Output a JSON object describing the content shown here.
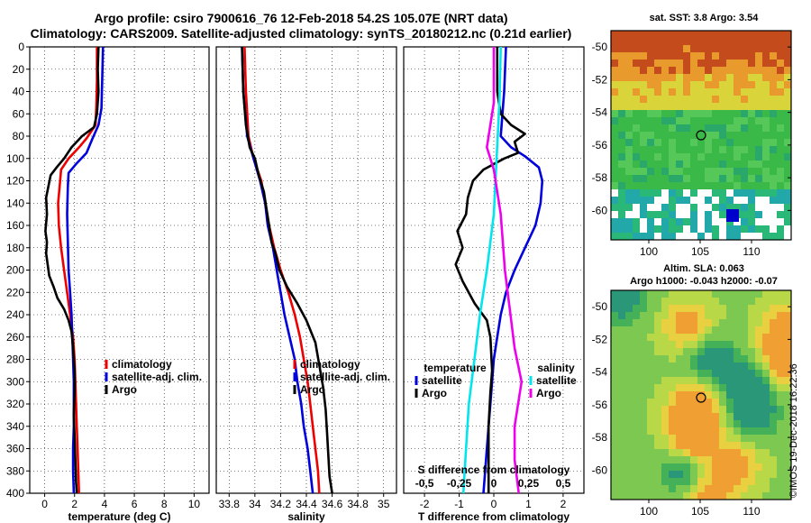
{
  "title_line1": "Argo profile: csiro 7900616_76 12-Feb-2018 54.2S 105.07E (NRT data)",
  "title_line2": "Climatology: CARS2009. Satellite-adjusted climatology: synTS_20180212.nc (0.21d earlier)",
  "colors": {
    "climatology": "#ee0000",
    "satellite": "#0000dd",
    "argo": "#000000",
    "sal_satellite": "#00e5ee",
    "sal_argo": "#ee00ee"
  },
  "chart_data": [
    {
      "type": "line",
      "name": "temperature",
      "xlabel": "temperature (deg C)",
      "ylabel": "",
      "xlim": [
        -1,
        11
      ],
      "ylim": [
        400,
        0
      ],
      "xticks": [
        "0",
        "2",
        "4",
        "6",
        "8",
        "10"
      ],
      "yticks": [
        "0",
        "20",
        "40",
        "60",
        "80",
        "100",
        "120",
        "140",
        "160",
        "180",
        "200",
        "220",
        "240",
        "260",
        "280",
        "300",
        "320",
        "340",
        "360",
        "380",
        "400"
      ],
      "legend": [
        "climatology",
        "satellite-adj. clim.",
        "Argo"
      ],
      "series": [
        {
          "name": "climatology",
          "points": [
            [
              3.5,
              0
            ],
            [
              3.5,
              30
            ],
            [
              3.45,
              55
            ],
            [
              3.4,
              70
            ],
            [
              2.8,
              82
            ],
            [
              2.3,
              90
            ],
            [
              1.6,
              100
            ],
            [
              1.1,
              110
            ],
            [
              1.0,
              125
            ],
            [
              0.9,
              140
            ],
            [
              0.95,
              160
            ],
            [
              1.1,
              180
            ],
            [
              1.3,
              200
            ],
            [
              1.5,
              220
            ],
            [
              1.7,
              240
            ],
            [
              1.9,
              260
            ],
            [
              2.0,
              280
            ],
            [
              2.05,
              300
            ],
            [
              2.1,
              320
            ],
            [
              2.15,
              340
            ],
            [
              2.2,
              360
            ],
            [
              2.25,
              380
            ],
            [
              2.3,
              400
            ]
          ]
        },
        {
          "name": "satellite",
          "points": [
            [
              3.9,
              0
            ],
            [
              3.85,
              30
            ],
            [
              3.8,
              55
            ],
            [
              3.6,
              70
            ],
            [
              3.2,
              82
            ],
            [
              2.8,
              95
            ],
            [
              2.1,
              105
            ],
            [
              1.6,
              113
            ],
            [
              1.55,
              125
            ],
            [
              1.5,
              150
            ],
            [
              1.55,
              175
            ],
            [
              1.6,
              200
            ],
            [
              1.7,
              220
            ],
            [
              1.8,
              240
            ],
            [
              1.85,
              260
            ],
            [
              1.9,
              280
            ],
            [
              1.95,
              300
            ],
            [
              1.95,
              320
            ],
            [
              1.95,
              340
            ],
            [
              1.9,
              360
            ],
            [
              1.9,
              380
            ],
            [
              1.95,
              400
            ]
          ]
        },
        {
          "name": "argo",
          "points": [
            [
              3.6,
              0
            ],
            [
              3.55,
              20
            ],
            [
              3.6,
              40
            ],
            [
              3.5,
              60
            ],
            [
              3.3,
              72
            ],
            [
              2.5,
              80
            ],
            [
              1.8,
              90
            ],
            [
              1.3,
              100
            ],
            [
              0.8,
              108
            ],
            [
              0.4,
              115
            ],
            [
              0.25,
              125
            ],
            [
              0.1,
              135
            ],
            [
              0.15,
              150
            ],
            [
              0.05,
              165
            ],
            [
              0.15,
              175
            ],
            [
              0.1,
              185
            ],
            [
              0.2,
              195
            ],
            [
              0.3,
              205
            ],
            [
              0.6,
              215
            ],
            [
              0.85,
              225
            ],
            [
              1.3,
              235
            ],
            [
              1.6,
              245
            ],
            [
              1.8,
              255
            ],
            [
              1.9,
              270
            ],
            [
              2.0,
              290
            ],
            [
              2.0,
              310
            ],
            [
              1.95,
              330
            ],
            [
              2.0,
              350
            ],
            [
              2.05,
              370
            ],
            [
              2.1,
              390
            ],
            [
              2.15,
              400
            ]
          ]
        }
      ]
    },
    {
      "type": "line",
      "name": "salinity",
      "xlabel": "salinity",
      "xlim": [
        33.7,
        35.1
      ],
      "ylim": [
        400,
        0
      ],
      "xticks": [
        "33.8",
        "34",
        "34.2",
        "34.4",
        "34.6",
        "34.8",
        "35"
      ],
      "legend": [
        "climatology",
        "satellite-adj. clim.",
        "Argo"
      ],
      "series": [
        {
          "name": "climatology",
          "points": [
            [
              33.92,
              0
            ],
            [
              33.93,
              40
            ],
            [
              33.95,
              80
            ],
            [
              33.99,
              100
            ],
            [
              34.05,
              120
            ],
            [
              34.08,
              140
            ],
            [
              34.11,
              160
            ],
            [
              34.15,
              180
            ],
            [
              34.2,
              200
            ],
            [
              34.26,
              220
            ],
            [
              34.31,
              240
            ],
            [
              34.35,
              260
            ],
            [
              34.38,
              280
            ],
            [
              34.41,
              300
            ],
            [
              34.43,
              320
            ],
            [
              34.45,
              340
            ],
            [
              34.47,
              360
            ],
            [
              34.49,
              380
            ],
            [
              34.5,
              400
            ]
          ]
        },
        {
          "name": "satellite",
          "points": [
            [
              33.9,
              0
            ],
            [
              33.91,
              40
            ],
            [
              33.94,
              80
            ],
            [
              33.99,
              100
            ],
            [
              34.04,
              120
            ],
            [
              34.08,
              140
            ],
            [
              34.1,
              160
            ],
            [
              34.14,
              180
            ],
            [
              34.17,
              200
            ],
            [
              34.2,
              220
            ],
            [
              34.23,
              240
            ],
            [
              34.27,
              260
            ],
            [
              34.31,
              280
            ],
            [
              34.33,
              300
            ],
            [
              34.36,
              320
            ],
            [
              34.38,
              340
            ],
            [
              34.41,
              360
            ],
            [
              34.43,
              380
            ],
            [
              34.45,
              400
            ]
          ]
        },
        {
          "name": "argo",
          "points": [
            [
              33.9,
              0
            ],
            [
              33.91,
              40
            ],
            [
              33.93,
              70
            ],
            [
              33.96,
              90
            ],
            [
              34.0,
              100
            ],
            [
              34.03,
              115
            ],
            [
              34.07,
              130
            ],
            [
              34.09,
              145
            ],
            [
              34.11,
              160
            ],
            [
              34.13,
              175
            ],
            [
              34.16,
              185
            ],
            [
              34.19,
              200
            ],
            [
              34.25,
              215
            ],
            [
              34.33,
              230
            ],
            [
              34.4,
              245
            ],
            [
              34.47,
              265
            ],
            [
              34.5,
              285
            ],
            [
              34.53,
              305
            ],
            [
              34.55,
              325
            ],
            [
              34.56,
              345
            ],
            [
              34.57,
              365
            ],
            [
              34.58,
              385
            ],
            [
              34.6,
              400
            ]
          ]
        }
      ]
    },
    {
      "type": "line",
      "name": "difference",
      "xlabel": "T difference from climatology",
      "xlabel_top": "S difference from climatology",
      "xlim": [
        -2.6,
        2.6
      ],
      "ylim": [
        400,
        0
      ],
      "xticks": [
        "-2",
        "-1",
        "0",
        "1",
        "2"
      ],
      "xticks_top": [
        "-0.5",
        "-0.25",
        "0",
        "0.25",
        "0.5"
      ],
      "legend_left_title": "temperature",
      "legend_left": [
        "satellite",
        "Argo"
      ],
      "legend_right_title": "salinity",
      "legend_right": [
        "satellite",
        "Argo"
      ],
      "series": [
        {
          "name": "T satellite",
          "points": [
            [
              0.35,
              0
            ],
            [
              0.3,
              40
            ],
            [
              0.2,
              80
            ],
            [
              0.5,
              90
            ],
            [
              0.9,
              98
            ],
            [
              1.3,
              108
            ],
            [
              1.4,
              120
            ],
            [
              1.35,
              140
            ],
            [
              1.2,
              160
            ],
            [
              0.9,
              180
            ],
            [
              0.6,
              200
            ],
            [
              0.35,
              220
            ],
            [
              0.2,
              240
            ],
            [
              0.1,
              260
            ],
            [
              0.0,
              280
            ],
            [
              -0.05,
              300
            ],
            [
              -0.1,
              320
            ],
            [
              -0.15,
              340
            ],
            [
              -0.2,
              360
            ],
            [
              -0.25,
              380
            ],
            [
              -0.3,
              400
            ]
          ]
        },
        {
          "name": "T argo",
          "points": [
            [
              0.1,
              0
            ],
            [
              0.1,
              40
            ],
            [
              0.2,
              60
            ],
            [
              0.5,
              70
            ],
            [
              0.9,
              78
            ],
            [
              0.6,
              85
            ],
            [
              0.7,
              95
            ],
            [
              0.3,
              100
            ],
            [
              -0.3,
              110
            ],
            [
              -0.6,
              120
            ],
            [
              -0.75,
              135
            ],
            [
              -0.8,
              150
            ],
            [
              -1.05,
              165
            ],
            [
              -0.9,
              180
            ],
            [
              -1.1,
              195
            ],
            [
              -0.9,
              210
            ],
            [
              -0.55,
              230
            ],
            [
              -0.2,
              245
            ],
            [
              -0.1,
              260
            ],
            [
              -0.05,
              290
            ],
            [
              -0.1,
              310
            ],
            [
              -0.15,
              340
            ],
            [
              -0.15,
              370
            ],
            [
              -0.15,
              400
            ]
          ]
        },
        {
          "name": "S satellite",
          "points": [
            [
              0.05,
              0
            ],
            [
              0.04,
              50
            ],
            [
              0.02,
              100
            ],
            [
              0.0,
              150
            ],
            [
              -0.05,
              200
            ],
            [
              -0.1,
              240
            ],
            [
              -0.14,
              280
            ],
            [
              -0.18,
              320
            ],
            [
              -0.2,
              360
            ],
            [
              -0.22,
              400
            ]
          ]
        },
        {
          "name": "S argo",
          "points": [
            [
              0.0,
              0
            ],
            [
              0.0,
              50
            ],
            [
              -0.05,
              90
            ],
            [
              0.0,
              110
            ],
            [
              0.05,
              150
            ],
            [
              0.08,
              200
            ],
            [
              0.12,
              240
            ],
            [
              0.15,
              270
            ],
            [
              0.2,
              300
            ],
            [
              0.15,
              340
            ],
            [
              0.15,
              370
            ],
            [
              0.18,
              400
            ]
          ]
        }
      ]
    }
  ],
  "map_sst": {
    "title": "sat. SST: 3.8 Argo: 3.54",
    "yticks": [
      "-50",
      "-52",
      "-54",
      "-56",
      "-58",
      "-60"
    ],
    "xticks": [
      "100",
      "105",
      "110"
    ]
  },
  "map_sla": {
    "title1": "Altim. SLA: 0.063",
    "title2": "Argo h1000: -0.043 h2000: -0.07",
    "yticks": [
      "-50",
      "-52",
      "-54",
      "-56",
      "-58",
      "-60"
    ],
    "xticks": [
      "100",
      "105",
      "110"
    ]
  },
  "credit": "©IMOS 19-Dec-2018 16:22:36"
}
